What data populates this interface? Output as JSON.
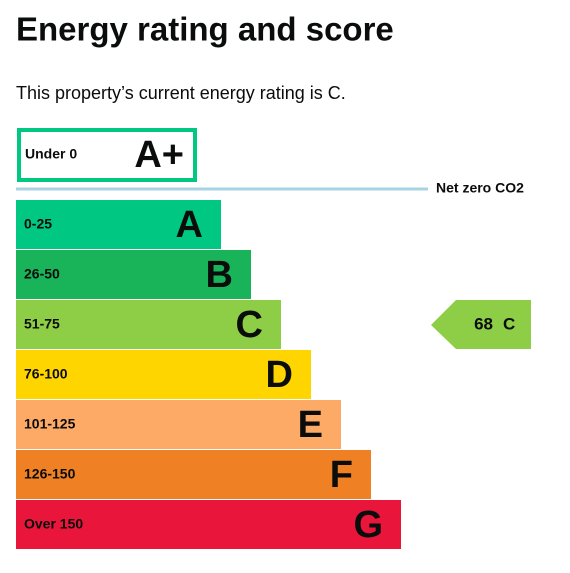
{
  "header": {
    "title": "Energy rating and score",
    "subtitle": "This property’s current energy rating is C."
  },
  "net_zero": {
    "range": "Under 0",
    "rating": "A+",
    "line_label": "Net zero CO2",
    "color": "#00c781",
    "line_color": "#a9d3e3"
  },
  "bands": [
    {
      "range": "0-25",
      "rating": "A",
      "color": "#00c781"
    },
    {
      "range": "26-50",
      "rating": "B",
      "color": "#19b459"
    },
    {
      "range": "51-75",
      "rating": "C",
      "color": "#8dce46"
    },
    {
      "range": "76-100",
      "rating": "D",
      "color": "#ffd500"
    },
    {
      "range": "101-125",
      "rating": "E",
      "color": "#fcaa65"
    },
    {
      "range": "126-150",
      "rating": "F",
      "color": "#ef8023"
    },
    {
      "range": "Over 150",
      "rating": "G",
      "color": "#e9153b"
    }
  ],
  "current": {
    "score": 68,
    "rating": "C"
  }
}
